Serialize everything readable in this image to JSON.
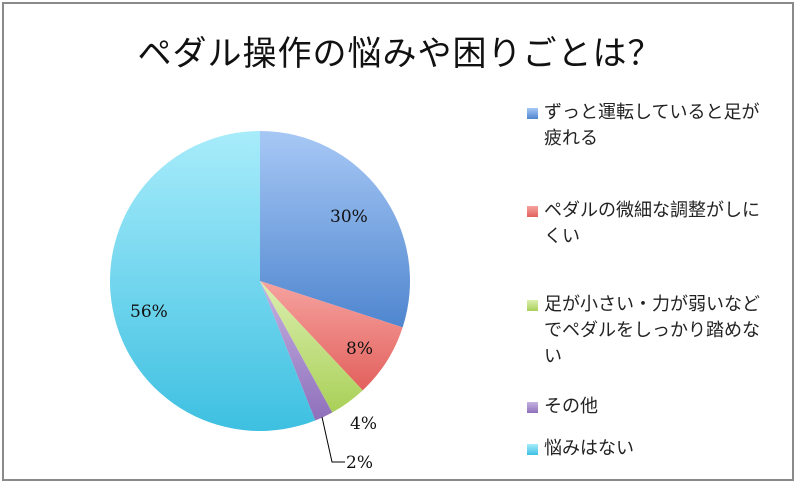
{
  "title": "ペダル操作の悩みや困りごとは？",
  "chart_data": {
    "type": "pie",
    "title": "ペダル操作の悩みや困りごとは？",
    "categories": [
      "ずっと運転していると足が疲れる",
      "ペダルの微細な調整がしにくい",
      "足が小さい・力が弱いなどでペダルをしっかり踏めない",
      "その他",
      "悩みはない"
    ],
    "values": [
      30,
      8,
      4,
      2,
      56
    ],
    "labels": [
      "30%",
      "8%",
      "4%",
      "2%",
      "56%"
    ],
    "colors": [
      "#5b93d8",
      "#e8706c",
      "#b5d867",
      "#9c7fc4",
      "#4bc5e3"
    ],
    "legend_position": "right",
    "start_angle": "12 o'clock, clockwise"
  },
  "legend": [
    {
      "label": "ずっと運転していると足が疲れる",
      "color": "#5b93d8"
    },
    {
      "label": "ペダルの微細な調整がしにくい",
      "color": "#e8706c"
    },
    {
      "label": "足が小さい・力が弱いなどでペダルをしっかり踏めない",
      "color": "#b5d867"
    },
    {
      "label": "その他",
      "color": "#9c7fc4"
    },
    {
      "label": "悩みはない",
      "color": "#4bc5e3"
    }
  ]
}
